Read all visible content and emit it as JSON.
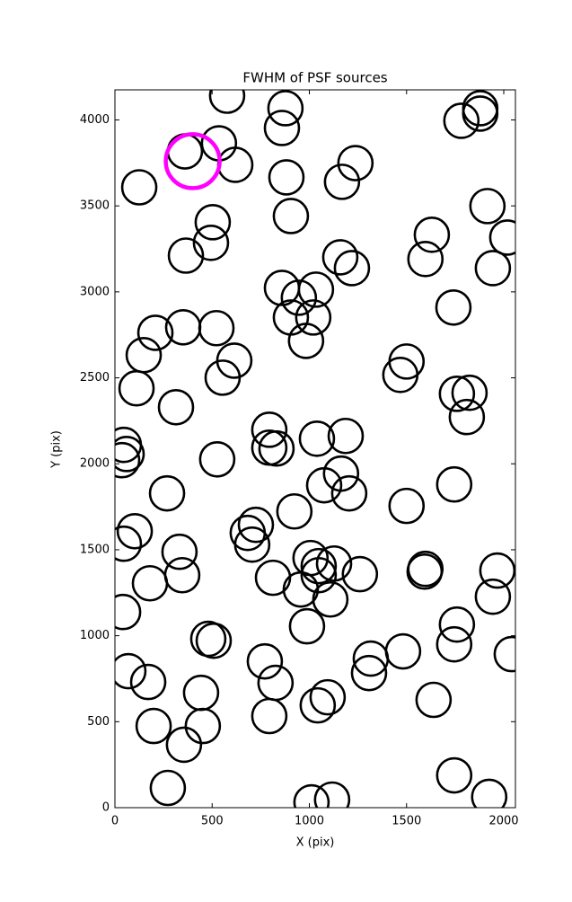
{
  "chart_data": {
    "type": "scatter",
    "title": "FWHM of PSF sources",
    "x_label": "X (pix)",
    "y_label": "Y (pix)",
    "xlim": [
      0,
      2060
    ],
    "ylim": [
      0,
      4175
    ],
    "xticks": [
      0,
      500,
      1000,
      1500,
      2000
    ],
    "yticks": [
      0,
      500,
      1000,
      1500,
      2000,
      2500,
      3000,
      3500,
      4000
    ],
    "series": [
      {
        "color": "#000000",
        "x": [
          577,
          877,
          1879,
          1879,
          859,
          1782,
          535,
          360,
          619,
          1237,
          882,
          1168,
          125,
          1916,
          905,
          503,
          1630,
          2018,
          494,
          365,
          1159,
          1597,
          1219,
          1944,
          859,
          1034,
          946,
          1741,
          905,
          1020,
          522,
          351,
          208,
          983,
          148,
          614,
          1500,
          554,
          1468,
          111,
          1759,
          1824,
          314,
          1810,
          794,
          1187,
          1039,
          46,
          60,
          794,
          831,
          37,
          526,
          1163,
          1076,
          1745,
          1205,
          268,
          1500,
          923,
          725,
          683,
          706,
          102,
          46,
          332,
          1006,
          1048,
          1127,
          1597,
          1593,
          1048,
          1260,
          346,
          1967,
          813,
          180,
          956,
          1108,
          1944,
          42,
          1759,
          988,
          480,
          508,
          1482,
          1316,
          1745,
          2041,
          771,
          69,
          826,
          171,
          1307,
          443,
          1094,
          1043,
          1639,
          794,
          199,
          452,
          355,
          1745,
          272,
          1011,
          1117,
          1925
        ],
        "values": [
          4141,
          4068,
          4068,
          4037,
          3953,
          3995,
          3864,
          3817,
          3739,
          3749,
          3666,
          3640,
          3608,
          3499,
          3441,
          3405,
          3332,
          3316,
          3285,
          3211,
          3201,
          3191,
          3138,
          3138,
          3023,
          3013,
          2966,
          2909,
          2851,
          2851,
          2789,
          2794,
          2762,
          2715,
          2632,
          2600,
          2595,
          2501,
          2517,
          2439,
          2407,
          2413,
          2329,
          2272,
          2198,
          2162,
          2146,
          2110,
          2057,
          2094,
          2089,
          2021,
          2026,
          1943,
          1875,
          1880,
          1828,
          1828,
          1755,
          1723,
          1645,
          1598,
          1530,
          1608,
          1535,
          1488,
          1452,
          1405,
          1420,
          1389,
          1373,
          1352,
          1358,
          1352,
          1379,
          1337,
          1305,
          1269,
          1211,
          1227,
          1138,
          1065,
          1055,
          982,
          971,
          909,
          867,
          950,
          893,
          851,
          794,
          726,
          731,
          783,
          668,
          642,
          595,
          627,
          533,
          475,
          475,
          366,
          188,
          115,
          31,
          47,
          63
        ]
      },
      {
        "color": "#ff00ff",
        "x": [
          400
        ],
        "values": [
          3760
        ]
      }
    ]
  }
}
